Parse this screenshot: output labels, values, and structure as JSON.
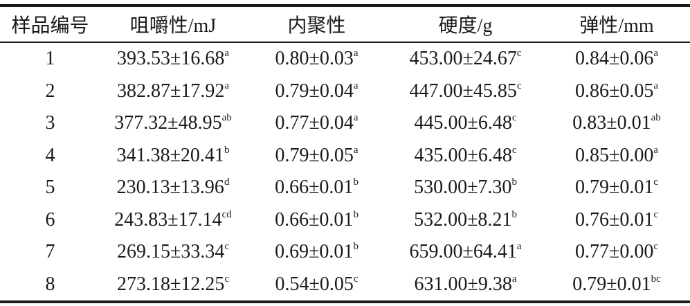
{
  "table": {
    "header": [
      "样品编号",
      "咀嚼性/mJ",
      "内聚性",
      "硬度/g",
      "弹性/mm"
    ],
    "rows": [
      [
        {
          "text": "1"
        },
        {
          "text": "393.53±16.68",
          "sup": "a"
        },
        {
          "text": "0.80±0.03",
          "sup": "a"
        },
        {
          "text": "453.00±24.67",
          "sup": "c"
        },
        {
          "text": "0.84±0.06",
          "sup": "a"
        }
      ],
      [
        {
          "text": "2"
        },
        {
          "text": "382.87±17.92",
          "sup": "a"
        },
        {
          "text": "0.79±0.04",
          "sup": "a"
        },
        {
          "text": "447.00±45.85",
          "sup": "c"
        },
        {
          "text": "0.86±0.05",
          "sup": "a"
        }
      ],
      [
        {
          "text": "3"
        },
        {
          "text": "377.32±48.95",
          "sup": "ab"
        },
        {
          "text": "0.77±0.04",
          "sup": "a"
        },
        {
          "text": "445.00±6.48",
          "sup": "c"
        },
        {
          "text": "0.83±0.01",
          "sup": "ab"
        }
      ],
      [
        {
          "text": "4"
        },
        {
          "text": "341.38±20.41",
          "sup": "b"
        },
        {
          "text": "0.79±0.05",
          "sup": "a"
        },
        {
          "text": "435.00±6.48",
          "sup": "c"
        },
        {
          "text": "0.85±0.00",
          "sup": "a"
        }
      ],
      [
        {
          "text": "5"
        },
        {
          "text": "230.13±13.96",
          "sup": "d"
        },
        {
          "text": "0.66±0.01",
          "sup": "b"
        },
        {
          "text": "530.00±7.30",
          "sup": "b"
        },
        {
          "text": "0.79±0.01",
          "sup": "c"
        }
      ],
      [
        {
          "text": "6"
        },
        {
          "text": "243.83±17.14",
          "sup": "cd"
        },
        {
          "text": "0.66±0.01",
          "sup": "b"
        },
        {
          "text": "532.00±8.21",
          "sup": "b"
        },
        {
          "text": "0.76±0.01",
          "sup": "c"
        }
      ],
      [
        {
          "text": "7"
        },
        {
          "text": "269.15±33.34",
          "sup": "c"
        },
        {
          "text": "0.69±0.01",
          "sup": "b"
        },
        {
          "text": "659.00±64.41",
          "sup": "a"
        },
        {
          "text": "0.77±0.00",
          "sup": "c"
        }
      ],
      [
        {
          "text": "8"
        },
        {
          "text": "273.18±12.25",
          "sup": "c"
        },
        {
          "text": "0.54±0.05",
          "sup": "c"
        },
        {
          "text": "631.00±9.38",
          "sup": "a"
        },
        {
          "text": "0.79±0.01",
          "sup": "bc"
        }
      ]
    ]
  }
}
